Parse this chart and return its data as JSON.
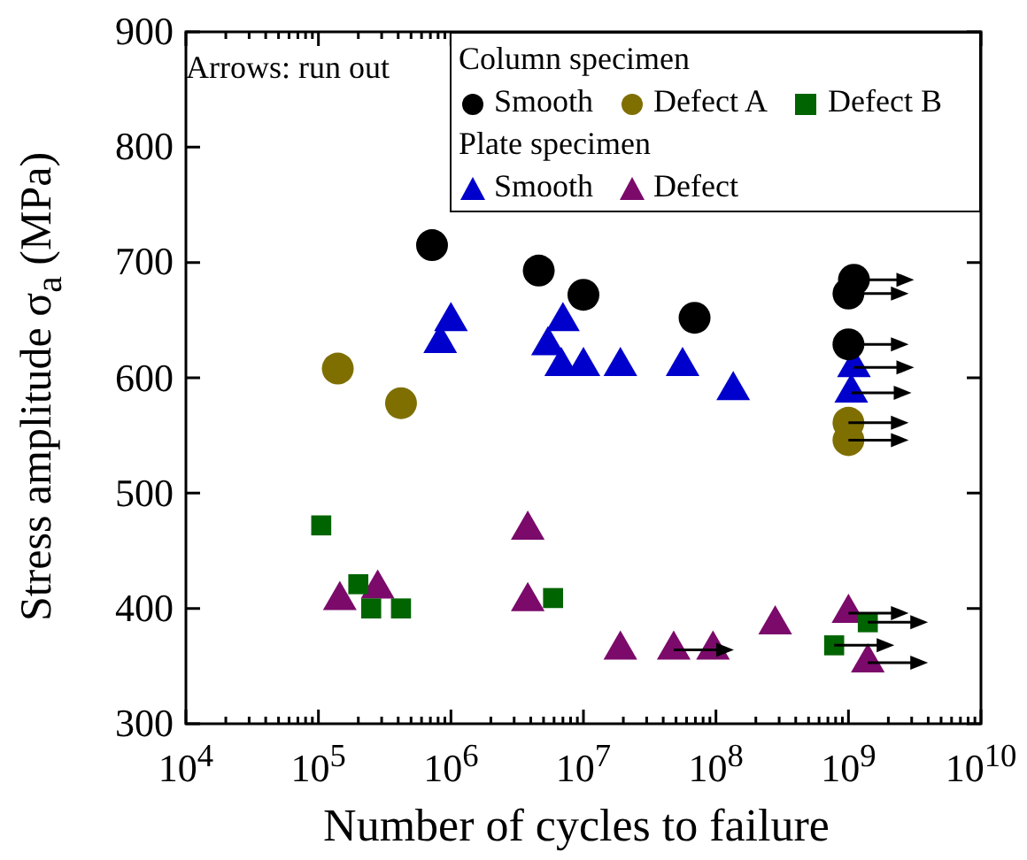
{
  "chart_data": {
    "type": "scatter",
    "xlabel": "Number of cycles to failure",
    "ylabel": "Stress amplitude σ$_{a}$ (MPa)",
    "annotations": [
      "Arrows: run out",
      "Column specimen",
      "Plate specimen"
    ],
    "log": "x",
    "grid": false,
    "legend": "top right",
    "xlim": [
      10000,
      10000000000
    ],
    "ylim": [
      300,
      900
    ],
    "yticks": [
      300,
      400,
      500,
      600,
      700,
      800,
      900
    ],
    "xticks": [
      {
        "value": 10000,
        "label": "10$^{4}$"
      },
      {
        "value": 20000,
        "label": null
      },
      {
        "value": 30000,
        "label": null
      },
      {
        "value": 40000,
        "label": null
      },
      {
        "value": 50000,
        "label": null
      },
      {
        "value": 60000,
        "label": null
      },
      {
        "value": 70000,
        "label": null
      },
      {
        "value": 80000,
        "label": null
      },
      {
        "value": 90000,
        "label": null
      },
      {
        "value": 100000,
        "label": "10$^{5}$"
      },
      {
        "value": 200000,
        "label": null
      },
      {
        "value": 300000,
        "label": null
      },
      {
        "value": 400000,
        "label": null
      },
      {
        "value": 500000,
        "label": null
      },
      {
        "value": 600000,
        "label": null
      },
      {
        "value": 700000,
        "label": null
      },
      {
        "value": 800000,
        "label": null
      },
      {
        "value": 900000,
        "label": null
      },
      {
        "value": 1000000,
        "label": "10$^{6}$"
      },
      {
        "value": 2000000,
        "label": null
      },
      {
        "value": 3000000,
        "label": null
      },
      {
        "value": 4000000,
        "label": null
      },
      {
        "value": 5000000,
        "label": null
      },
      {
        "value": 6000000,
        "label": null
      },
      {
        "value": 7000000,
        "label": null
      },
      {
        "value": 8000000,
        "label": null
      },
      {
        "value": 9000000,
        "label": null
      },
      {
        "value": 10000000,
        "label": "10$^{7}$"
      },
      {
        "value": 20000000,
        "label": null
      },
      {
        "value": 30000000,
        "label": null
      },
      {
        "value": 40000000,
        "label": null
      },
      {
        "value": 50000000,
        "label": null
      },
      {
        "value": 60000000,
        "label": null
      },
      {
        "value": 70000000,
        "label": null
      },
      {
        "value": 80000000,
        "label": null
      },
      {
        "value": 90000000,
        "label": null
      },
      {
        "value": 100000000,
        "label": "10$^{8}$"
      },
      {
        "value": 200000000,
        "label": null
      },
      {
        "value": 300000000,
        "label": null
      },
      {
        "value": 400000000,
        "label": null
      },
      {
        "value": 500000000,
        "label": null
      },
      {
        "value": 600000000,
        "label": null
      },
      {
        "value": 700000000,
        "label": null
      },
      {
        "value": 800000000,
        "label": null
      },
      {
        "value": 900000000,
        "label": null
      },
      {
        "value": 1000000000,
        "label": "10$^{9}$"
      },
      {
        "value": 2000000000,
        "label": null
      },
      {
        "value": 3000000000,
        "label": null
      },
      {
        "value": 4000000000,
        "label": null
      },
      {
        "value": 5000000000,
        "label": null
      },
      {
        "value": 6000000000,
        "label": null
      },
      {
        "value": 7000000000,
        "label": null
      },
      {
        "value": 8000000000,
        "label": null
      },
      {
        "value": 9000000000,
        "label": null
      },
      {
        "value": 10000000000,
        "label": "10$^{10}$"
      }
    ],
    "series": [
      {
        "name": "Smooth",
        "color": "#000000",
        "marker": "circle",
        "x": [
          720000,
          4600000,
          10000000,
          69000000
        ],
        "values": [
          715,
          693,
          672,
          652
        ]
      },
      {
        "name": "Defect A",
        "color": "#7f6f00",
        "marker": "circle",
        "x": [
          140000,
          420000
        ],
        "values": [
          608,
          578
        ]
      },
      {
        "name": "Defect B",
        "color": "#006400",
        "marker": "square",
        "x": [
          105000,
          200000,
          250000,
          420000,
          5900000
        ],
        "values": [
          472,
          421,
          400,
          400,
          409
        ]
      },
      {
        "name": "Smooth",
        "color": "#0000cc",
        "marker": "triangle",
        "x": [
          830000,
          1000000,
          5400000,
          7000000,
          6800000,
          10000000,
          19000000,
          56000000,
          135000000
        ],
        "values": [
          630,
          649,
          628,
          649,
          610,
          610,
          610,
          610,
          589
        ]
      },
      {
        "name": "Defect",
        "color": "#7b0a6b",
        "marker": "triangle",
        "x": [
          145000,
          280000,
          3800000,
          3800000,
          19000000,
          95000000,
          280000000
        ],
        "values": [
          407,
          417,
          468,
          406,
          364,
          364,
          386
        ]
      },
      {
        "color": "#000000",
        "marker": "circle",
        "x": [
          1100000000,
          1000000000,
          1000000000
        ],
        "values": [
          685,
          673,
          629
        ]
      },
      {
        "color": "#7f6f00",
        "marker": "circle",
        "x": [
          1000000000,
          1000000000
        ],
        "values": [
          561,
          546
        ]
      },
      {
        "color": "#006400",
        "marker": "square",
        "x": [
          780000000,
          1400000000
        ],
        "values": [
          368,
          388
        ]
      },
      {
        "color": "#0000cc",
        "marker": "triangle",
        "x": [
          1100000000,
          1050000000
        ],
        "values": [
          609,
          587
        ]
      },
      {
        "color": "#7b0a6b",
        "marker": "triangle",
        "x": [
          48000000,
          1000000000,
          1400000000
        ],
        "values": [
          364,
          396,
          353
        ]
      }
    ]
  }
}
